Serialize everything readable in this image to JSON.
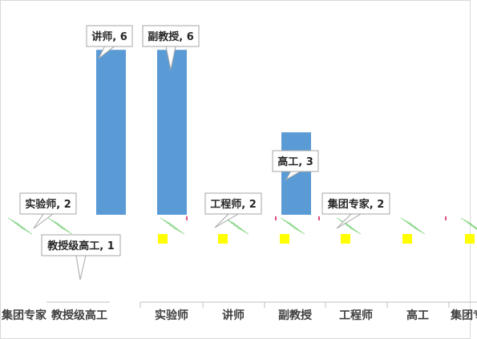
{
  "chart_data": {
    "type": "bar",
    "categories": [
      "集团专家",
      "教授级高工",
      "实验师",
      "讲师",
      "副教授",
      "工程师",
      "高工",
      "集团专家"
    ],
    "values": [
      2,
      1,
      2,
      6,
      6,
      2,
      3,
      2
    ],
    "data_labels": [
      "集团专家, 2",
      "教授级高工, 1",
      "实验师, 2",
      "讲师, 6",
      "副教授, 6",
      "工程师, 2",
      "高工, 3",
      "集团专家, 2"
    ],
    "bar_color": "#5b9bd5",
    "highlight_color": "#ffff00",
    "axis_line_color": "#bfbfbf",
    "label_border_color": "#a6a6a6",
    "grid": false
  }
}
